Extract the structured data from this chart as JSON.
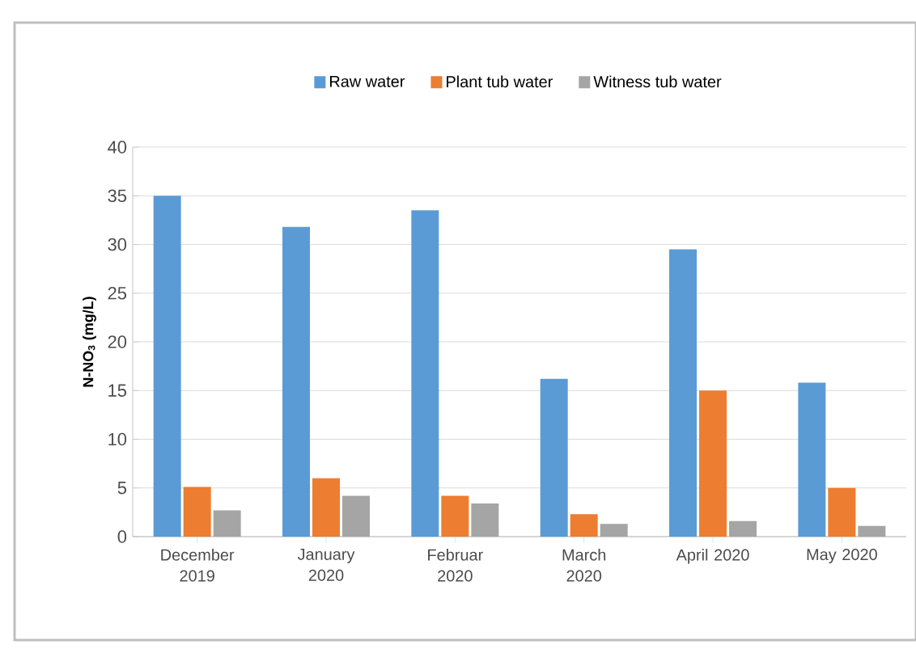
{
  "chart_data": {
    "type": "bar",
    "ylabel": "N-NO$_{3}$ (mg/L)",
    "categories": [
      "December 2019",
      "January 2020",
      "Februar 2020",
      "March 2020",
      "April 2020",
      "May 2020"
    ],
    "series": [
      {
        "name": "Raw water",
        "color": "#5b9bd5",
        "values": [
          35,
          31.8,
          33.5,
          16.2,
          29.5,
          15.8
        ]
      },
      {
        "name": "Plant tub water",
        "color": "#ed7d31",
        "values": [
          5.1,
          6,
          4.2,
          2.3,
          15,
          5
        ]
      },
      {
        "name": "Witness tub water",
        "color": "#a5a5a5",
        "values": [
          2.7,
          4.2,
          3.4,
          1.3,
          1.6,
          1.1
        ]
      }
    ],
    "ylim": [
      0,
      40
    ],
    "yticks": [
      0,
      5,
      10,
      15,
      20,
      25,
      30,
      35,
      40
    ],
    "grid": "y",
    "legend": "top"
  }
}
